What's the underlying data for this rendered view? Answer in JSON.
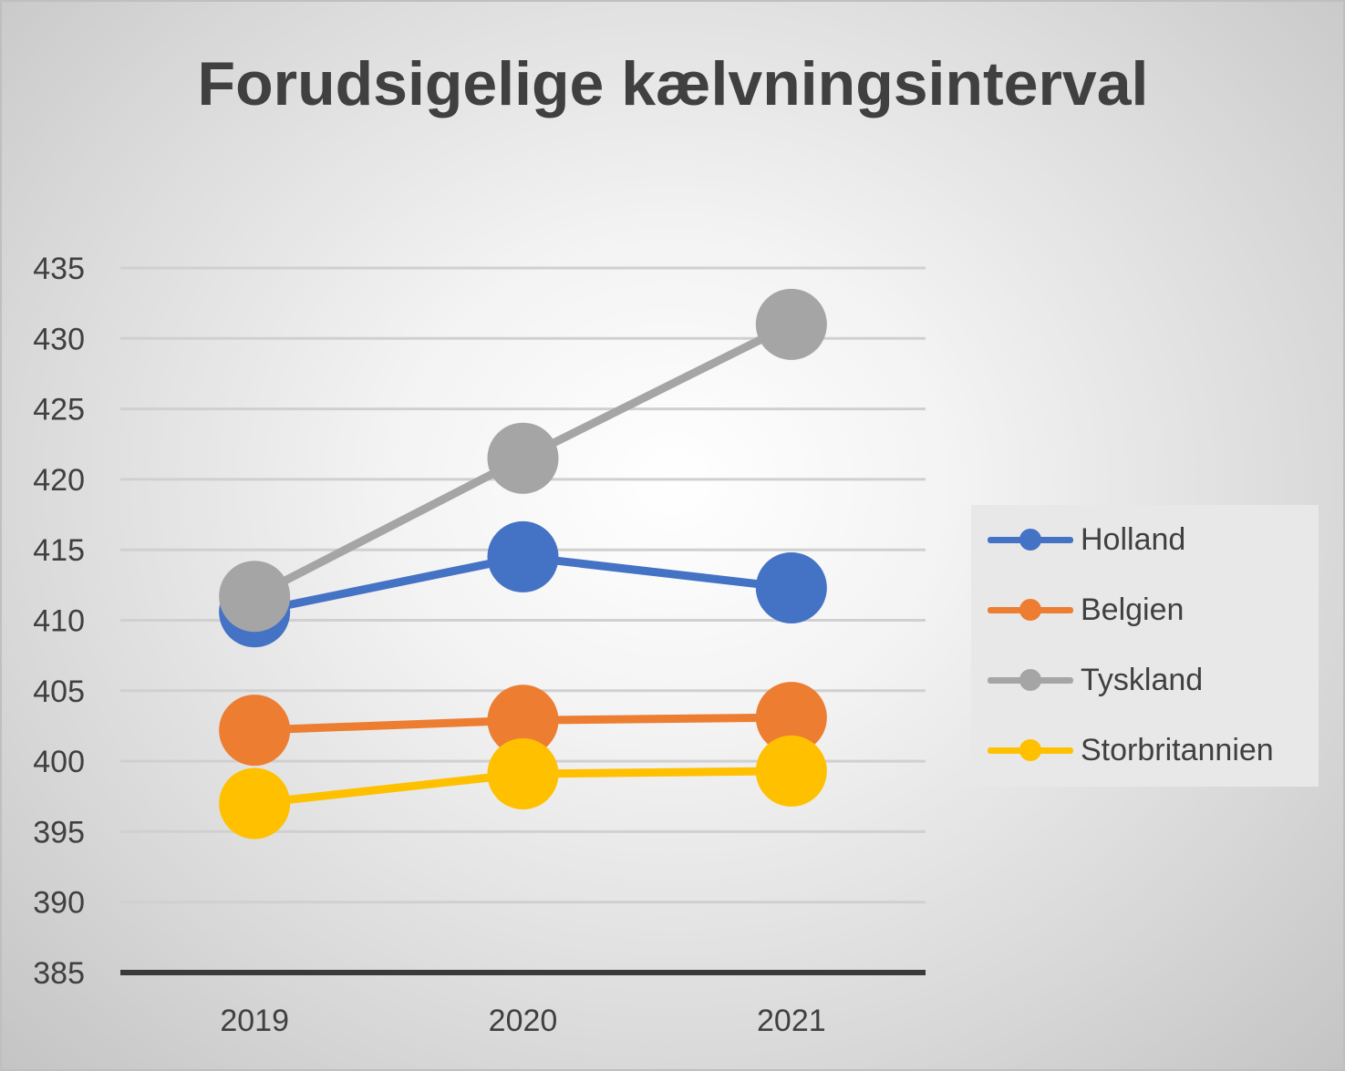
{
  "chart_data": {
    "type": "line",
    "title": "Forudsigelige kælvningsinterval",
    "categories": [
      "2019",
      "2020",
      "2021"
    ],
    "ylim": [
      385,
      435
    ],
    "yticks": [
      385,
      390,
      395,
      400,
      405,
      410,
      415,
      420,
      425,
      430,
      435
    ],
    "grid": true,
    "legend_position": "right",
    "series": [
      {
        "name": "Holland",
        "color": "#4472c4",
        "values": [
          410.6,
          414.5,
          412.3
        ]
      },
      {
        "name": "Belgien",
        "color": "#ed7d31",
        "values": [
          402.2,
          402.9,
          403.1
        ]
      },
      {
        "name": "Tyskland",
        "color": "#a5a5a5",
        "values": [
          411.7,
          421.5,
          431.0
        ]
      },
      {
        "name": "Storbritannien",
        "color": "#ffc000",
        "values": [
          397.0,
          399.1,
          399.3
        ]
      }
    ]
  }
}
